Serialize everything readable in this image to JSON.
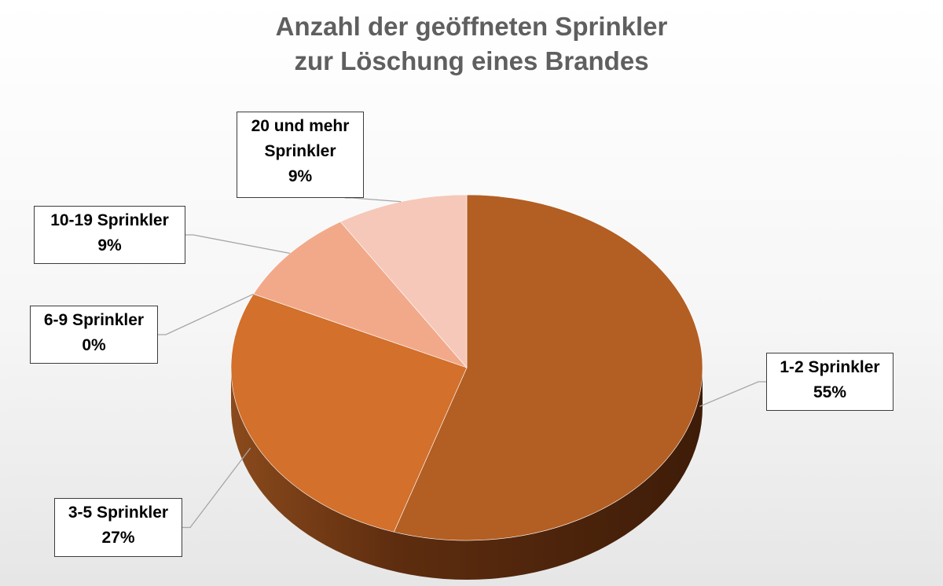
{
  "chart_data": {
    "type": "pie",
    "title_lines": [
      "Anzahl der geöffneten Sprinkler",
      "zur Löschung eines Brandes"
    ],
    "slices": [
      {
        "name": "1-2 Sprinkler",
        "value": 55,
        "label": "55%",
        "color": "#b35e23"
      },
      {
        "name": "3-5 Sprinkler",
        "value": 27,
        "label": "27%",
        "color": "#d2702c"
      },
      {
        "name": "6-9 Sprinkler",
        "value": 0,
        "label": "0%",
        "color": "#e07e3c"
      },
      {
        "name": "10-19 Sprinkler",
        "value": 9,
        "label": "9%",
        "color": "#f2a98a"
      },
      {
        "name": "20 und mehr Sprinkler",
        "value": 9,
        "label": "9%",
        "color": "#f6c8b9"
      }
    ],
    "label_lines": {
      "s0": [
        "1-2 Sprinkler",
        "55%"
      ],
      "s1": [
        "3-5 Sprinkler",
        "27%"
      ],
      "s2": [
        "6-9 Sprinkler",
        "0%"
      ],
      "s3": [
        "10-19 Sprinkler",
        "9%"
      ],
      "s4": [
        "20 und mehr",
        "Sprinkler",
        "9%"
      ]
    },
    "edge_color": "#6b3413",
    "leader_color": "#a6a6a6",
    "style": "3d-pie"
  }
}
